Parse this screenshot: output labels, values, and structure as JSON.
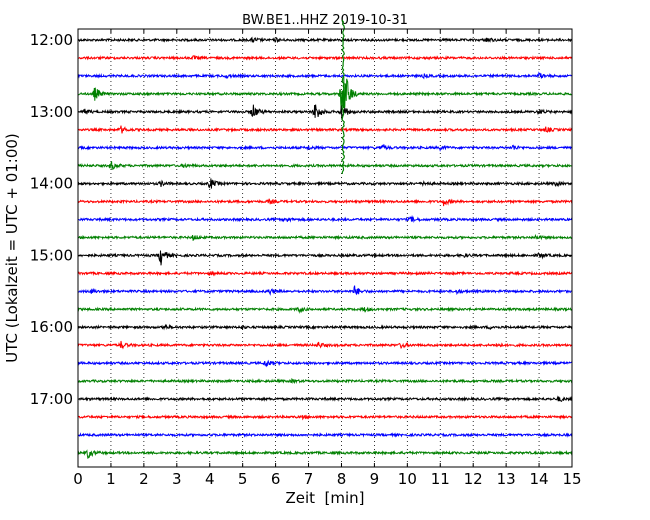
{
  "chart_data": {
    "type": "line",
    "title": "BW.BE1..HHZ 2019-10-31",
    "xlabel": "Zeit  [min]",
    "ylabel": "UTC (Lokalzeit = UTC + 01:00)",
    "xlim": [
      0,
      15
    ],
    "x_ticks": [
      "0",
      "1",
      "2",
      "3",
      "4",
      "5",
      "6",
      "7",
      "8",
      "9",
      "10",
      "11",
      "12",
      "13",
      "14",
      "15"
    ],
    "y_ticks": [
      {
        "label": "12:00",
        "row": 0
      },
      {
        "label": "13:00",
        "row": 4
      },
      {
        "label": "14:00",
        "row": 8
      },
      {
        "label": "15:00",
        "row": 12
      },
      {
        "label": "16:00",
        "row": 16
      },
      {
        "label": "17:00",
        "row": 20
      }
    ],
    "grid": "vertical dotted at each minute",
    "trace_interval_min": 15,
    "colors": [
      "#000000",
      "#ff0000",
      "#0000ff",
      "#008000"
    ],
    "traces": [
      {
        "start": "12:00",
        "color": "#000000",
        "events": [
          [
            5.3,
            0.3
          ],
          [
            6.0,
            0.2
          ],
          [
            12.4,
            0.3
          ]
        ]
      },
      {
        "start": "12:15",
        "color": "#ff0000",
        "events": [
          [
            3.5,
            0.15
          ]
        ]
      },
      {
        "start": "12:30",
        "color": "#0000ff",
        "events": [
          [
            4.5,
            0.2
          ],
          [
            10.5,
            0.15
          ],
          [
            14.0,
            0.3
          ]
        ]
      },
      {
        "start": "12:45",
        "color": "#008000",
        "events": [
          [
            0.5,
            0.8
          ],
          [
            8.0,
            2.5
          ],
          [
            8.1,
            1.8
          ]
        ]
      },
      {
        "start": "13:00",
        "color": "#000000",
        "events": [
          [
            0.2,
            0.3
          ],
          [
            5.3,
            0.9
          ],
          [
            7.2,
            1.3
          ],
          [
            8.0,
            1.0
          ],
          [
            14.0,
            0.3
          ]
        ]
      },
      {
        "start": "13:15",
        "color": "#ff0000",
        "events": [
          [
            1.3,
            0.4
          ],
          [
            14.2,
            0.3
          ]
        ]
      },
      {
        "start": "13:30",
        "color": "#0000ff",
        "events": [
          [
            7.0,
            0.2
          ],
          [
            9.2,
            0.3
          ],
          [
            11.0,
            0.2
          ],
          [
            13.2,
            0.3
          ]
        ]
      },
      {
        "start": "13:45",
        "color": "#008000",
        "events": [
          [
            1.0,
            0.5
          ],
          [
            3.2,
            0.2
          ]
        ]
      },
      {
        "start": "14:00",
        "color": "#000000",
        "events": [
          [
            2.5,
            0.3
          ],
          [
            4.0,
            0.7
          ],
          [
            10.5,
            0.2
          ],
          [
            14.5,
            0.2
          ]
        ]
      },
      {
        "start": "14:15",
        "color": "#ff0000",
        "events": [
          [
            5.8,
            0.25
          ],
          [
            11.1,
            0.4
          ]
        ]
      },
      {
        "start": "14:30",
        "color": "#0000ff",
        "events": [
          [
            6.3,
            0.3
          ],
          [
            10.1,
            0.3
          ]
        ]
      },
      {
        "start": "14:45",
        "color": "#008000",
        "events": [
          [
            3.5,
            0.3
          ],
          [
            13.9,
            0.2
          ]
        ]
      },
      {
        "start": "15:00",
        "color": "#000000",
        "events": [
          [
            2.5,
            1.2
          ],
          [
            11.7,
            0.2
          ],
          [
            14.0,
            0.3
          ]
        ]
      },
      {
        "start": "15:15",
        "color": "#ff0000",
        "events": [
          [
            4.0,
            0.15
          ]
        ]
      },
      {
        "start": "15:30",
        "color": "#0000ff",
        "events": [
          [
            0.4,
            0.2
          ],
          [
            5.8,
            0.35
          ],
          [
            8.4,
            0.6
          ],
          [
            11.5,
            0.2
          ]
        ]
      },
      {
        "start": "15:45",
        "color": "#008000",
        "events": [
          [
            6.7,
            0.3
          ],
          [
            8.7,
            0.25
          ]
        ]
      },
      {
        "start": "16:00",
        "color": "#000000",
        "events": [
          [
            2.6,
            0.25
          ],
          [
            4.9,
            0.2
          ],
          [
            12.5,
            0.15
          ]
        ]
      },
      {
        "start": "16:15",
        "color": "#ff0000",
        "events": [
          [
            1.3,
            0.4
          ],
          [
            7.3,
            0.3
          ],
          [
            9.8,
            0.3
          ],
          [
            12.7,
            0.25
          ]
        ]
      },
      {
        "start": "16:30",
        "color": "#0000ff",
        "events": [
          [
            5.7,
            0.45
          ]
        ]
      },
      {
        "start": "16:45",
        "color": "#008000",
        "events": [
          [
            6.5,
            0.15
          ]
        ]
      },
      {
        "start": "17:00",
        "color": "#000000",
        "events": [
          [
            14.6,
            0.3
          ]
        ]
      },
      {
        "start": "17:15",
        "color": "#ff0000",
        "events": [
          [
            6.8,
            0.15
          ]
        ]
      },
      {
        "start": "17:30",
        "color": "#0000ff",
        "events": []
      },
      {
        "start": "17:45",
        "color": "#008000",
        "events": [
          [
            0.3,
            0.6
          ]
        ]
      }
    ],
    "vertical_spike": {
      "x": 8.05,
      "from_row": 0,
      "to_row": 7,
      "color": "#008000"
    }
  }
}
